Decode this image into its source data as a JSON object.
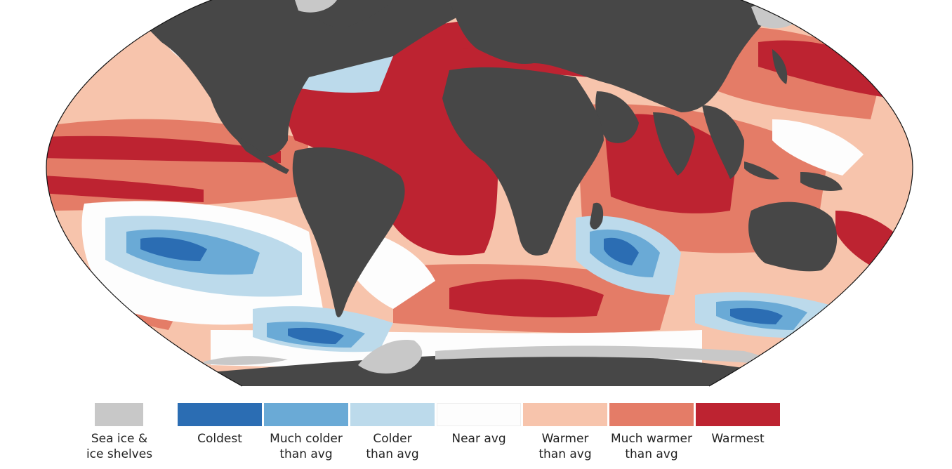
{
  "colors": {
    "land": "#474747",
    "sea_ice": "#c8c8c8",
    "coldest": "#2b6db3",
    "much_colder": "#6aaad6",
    "colder": "#bcdaeb",
    "near_avg": "#fdfdfd",
    "warmer": "#f7c4ac",
    "much_warmer": "#e47c67",
    "warmest": "#bd2331"
  },
  "legend": {
    "sea_ice": "Sea ice &\nice shelves",
    "items": [
      {
        "key": "coldest",
        "label": "Coldest"
      },
      {
        "key": "much_colder",
        "label": "Much colder\nthan avg"
      },
      {
        "key": "colder",
        "label": "Colder\nthan avg"
      },
      {
        "key": "near_avg",
        "label": "Near avg"
      },
      {
        "key": "warmer",
        "label": "Warmer\nthan avg"
      },
      {
        "key": "much_warmer",
        "label": "Much warmer\nthan avg"
      },
      {
        "key": "warmest",
        "label": "Warmest"
      }
    ]
  }
}
